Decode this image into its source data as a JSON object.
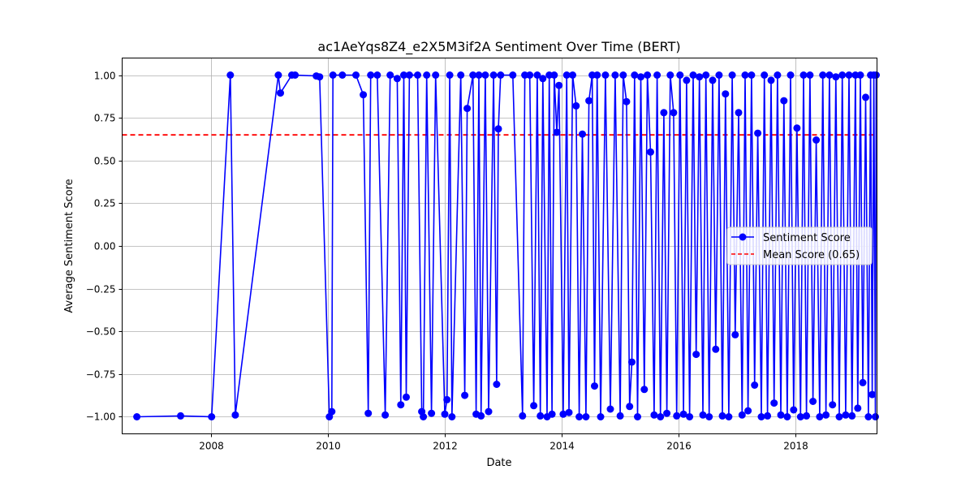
{
  "chart_data": {
    "type": "line",
    "title": "ac1AeYqs8Z4_e2X5M3if2A Sentiment Over Time (BERT)",
    "xlabel": "Date",
    "ylabel": "Average Sentiment Score",
    "xlim": [
      "2006-06-25",
      "2019-05-25"
    ],
    "ylim": [
      -1.1,
      1.1
    ],
    "x_ticks": [
      "2008",
      "2010",
      "2012",
      "2014",
      "2016",
      "2018"
    ],
    "y_ticks": [
      "−1.00",
      "−0.75",
      "−0.50",
      "−0.25",
      "0.00",
      "0.25",
      "0.50",
      "0.75",
      "1.00"
    ],
    "y_tick_values": [
      -1.0,
      -0.75,
      -0.5,
      -0.25,
      0.0,
      0.25,
      0.5,
      0.75,
      1.0
    ],
    "grid": true,
    "legend_position": "center-right",
    "reference_line": {
      "name": "Mean Score (0.65)",
      "value": 0.65,
      "color": "#ff0000",
      "style": "dashed"
    },
    "series": [
      {
        "name": "Sentiment Score",
        "color": "#0000ff",
        "marker": "circle",
        "points": [
          [
            "2006-09-25",
            -1.0
          ],
          [
            "2007-06-25",
            -0.995
          ],
          [
            "2008-01-05",
            -1.0
          ],
          [
            "2008-05-01",
            1.0
          ],
          [
            "2008-06-01",
            -0.99
          ],
          [
            "2009-02-25",
            1.0
          ],
          [
            "2009-03-10",
            0.895
          ],
          [
            "2009-05-20",
            1.0
          ],
          [
            "2009-06-10",
            1.0
          ],
          [
            "2009-10-20",
            0.995
          ],
          [
            "2009-11-10",
            0.99
          ],
          [
            "2010-01-10",
            -1.0
          ],
          [
            "2010-01-25",
            -0.97
          ],
          [
            "2010-02-01",
            1.0
          ],
          [
            "2010-04-01",
            1.0
          ],
          [
            "2010-06-25",
            1.0
          ],
          [
            "2010-08-10",
            0.885
          ],
          [
            "2010-09-10",
            -0.98
          ],
          [
            "2010-09-25",
            1.0
          ],
          [
            "2010-11-05",
            1.0
          ],
          [
            "2010-12-25",
            -0.99
          ],
          [
            "2011-01-25",
            1.0
          ],
          [
            "2011-03-10",
            0.98
          ],
          [
            "2011-04-01",
            -0.93
          ],
          [
            "2011-04-20",
            1.0
          ],
          [
            "2011-05-05",
            -0.885
          ],
          [
            "2011-05-25",
            1.0
          ],
          [
            "2011-07-15",
            1.0
          ],
          [
            "2011-08-10",
            -0.97
          ],
          [
            "2011-08-20",
            -1.0
          ],
          [
            "2011-09-10",
            1.0
          ],
          [
            "2011-10-10",
            -0.98
          ],
          [
            "2011-11-05",
            1.0
          ],
          [
            "2012-01-01",
            -0.985
          ],
          [
            "2012-01-15",
            -0.9
          ],
          [
            "2012-02-01",
            1.0
          ],
          [
            "2012-02-15",
            -1.0
          ],
          [
            "2012-04-10",
            1.0
          ],
          [
            "2012-05-05",
            -0.875
          ],
          [
            "2012-05-20",
            0.805
          ],
          [
            "2012-06-25",
            1.0
          ],
          [
            "2012-07-15",
            -0.985
          ],
          [
            "2012-08-01",
            1.0
          ],
          [
            "2012-08-15",
            -0.995
          ],
          [
            "2012-09-10",
            1.0
          ],
          [
            "2012-10-01",
            -0.97
          ],
          [
            "2012-11-01",
            1.0
          ],
          [
            "2012-11-20",
            -0.81
          ],
          [
            "2012-12-01",
            0.685
          ],
          [
            "2012-12-15",
            1.0
          ],
          [
            "2013-03-01",
            1.0
          ],
          [
            "2013-05-01",
            -0.995
          ],
          [
            "2013-05-15",
            1.0
          ],
          [
            "2013-06-15",
            1.0
          ],
          [
            "2013-07-10",
            -0.935
          ],
          [
            "2013-08-01",
            1.0
          ],
          [
            "2013-08-20",
            -0.995
          ],
          [
            "2013-09-05",
            0.98
          ],
          [
            "2013-10-01",
            -1.0
          ],
          [
            "2013-10-15",
            1.0
          ],
          [
            "2013-11-01",
            -0.985
          ],
          [
            "2013-11-15",
            1.0
          ],
          [
            "2013-12-01",
            0.665
          ],
          [
            "2013-12-15",
            0.94
          ],
          [
            "2014-01-10",
            -0.985
          ],
          [
            "2014-02-01",
            1.0
          ],
          [
            "2014-02-15",
            -0.975
          ],
          [
            "2014-03-10",
            1.0
          ],
          [
            "2014-04-01",
            0.82
          ],
          [
            "2014-04-20",
            -1.0
          ],
          [
            "2014-05-10",
            0.655
          ],
          [
            "2014-06-01",
            -1.0
          ],
          [
            "2014-06-20",
            0.85
          ],
          [
            "2014-07-10",
            1.0
          ],
          [
            "2014-07-25",
            -0.82
          ],
          [
            "2014-08-10",
            1.0
          ],
          [
            "2014-09-01",
            -1.0
          ],
          [
            "2014-10-01",
            1.0
          ],
          [
            "2014-11-01",
            -0.955
          ],
          [
            "2014-12-01",
            1.0
          ],
          [
            "2015-01-01",
            -0.995
          ],
          [
            "2015-01-20",
            1.0
          ],
          [
            "2015-02-10",
            0.845
          ],
          [
            "2015-03-01",
            -0.94
          ],
          [
            "2015-03-15",
            -0.68
          ],
          [
            "2015-04-01",
            1.0
          ],
          [
            "2015-04-20",
            -1.0
          ],
          [
            "2015-05-10",
            0.99
          ],
          [
            "2015-06-01",
            -0.84
          ],
          [
            "2015-06-20",
            1.0
          ],
          [
            "2015-07-10",
            0.55
          ],
          [
            "2015-08-01",
            -0.99
          ],
          [
            "2015-08-20",
            1.0
          ],
          [
            "2015-09-10",
            -1.0
          ],
          [
            "2015-10-01",
            0.78
          ],
          [
            "2015-10-20",
            -0.98
          ],
          [
            "2015-11-10",
            1.0
          ],
          [
            "2015-12-01",
            0.78
          ],
          [
            "2015-12-20",
            -0.995
          ],
          [
            "2016-01-10",
            1.0
          ],
          [
            "2016-02-01",
            -0.985
          ],
          [
            "2016-02-20",
            0.97
          ],
          [
            "2016-03-10",
            -1.0
          ],
          [
            "2016-04-01",
            1.0
          ],
          [
            "2016-04-20",
            -0.635
          ],
          [
            "2016-05-10",
            0.99
          ],
          [
            "2016-06-01",
            -0.99
          ],
          [
            "2016-06-20",
            1.0
          ],
          [
            "2016-07-10",
            -1.0
          ],
          [
            "2016-08-01",
            0.97
          ],
          [
            "2016-08-20",
            -0.605
          ],
          [
            "2016-09-10",
            1.0
          ],
          [
            "2016-10-01",
            -0.995
          ],
          [
            "2016-10-20",
            0.89
          ],
          [
            "2016-11-10",
            -1.0
          ],
          [
            "2016-12-01",
            1.0
          ],
          [
            "2016-12-20",
            -0.52
          ],
          [
            "2017-01-10",
            0.78
          ],
          [
            "2017-02-01",
            -0.99
          ],
          [
            "2017-02-20",
            1.0
          ],
          [
            "2017-03-10",
            -0.965
          ],
          [
            "2017-04-01",
            1.0
          ],
          [
            "2017-04-20",
            -0.815
          ],
          [
            "2017-05-10",
            0.66
          ],
          [
            "2017-06-01",
            -1.0
          ],
          [
            "2017-06-20",
            1.0
          ],
          [
            "2017-07-10",
            -0.995
          ],
          [
            "2017-08-01",
            0.97
          ],
          [
            "2017-08-20",
            -0.92
          ],
          [
            "2017-09-10",
            1.0
          ],
          [
            "2017-10-01",
            -0.99
          ],
          [
            "2017-10-20",
            0.85
          ],
          [
            "2017-11-10",
            -1.0
          ],
          [
            "2017-12-01",
            1.0
          ],
          [
            "2017-12-20",
            -0.96
          ],
          [
            "2018-01-10",
            0.69
          ],
          [
            "2018-02-01",
            -1.0
          ],
          [
            "2018-02-20",
            1.0
          ],
          [
            "2018-03-10",
            -0.995
          ],
          [
            "2018-04-01",
            1.0
          ],
          [
            "2018-04-20",
            -0.91
          ],
          [
            "2018-05-10",
            0.62
          ],
          [
            "2018-06-01",
            -1.0
          ],
          [
            "2018-06-20",
            1.0
          ],
          [
            "2018-07-10",
            -0.99
          ],
          [
            "2018-08-01",
            1.0
          ],
          [
            "2018-08-20",
            -0.93
          ],
          [
            "2018-09-10",
            0.99
          ],
          [
            "2018-10-01",
            -1.0
          ],
          [
            "2018-10-20",
            1.0
          ],
          [
            "2018-11-10",
            -0.99
          ],
          [
            "2018-12-01",
            1.0
          ],
          [
            "2018-12-20",
            -0.995
          ],
          [
            "2019-01-10",
            1.0
          ],
          [
            "2019-01-25",
            -0.95
          ],
          [
            "2019-02-10",
            1.0
          ],
          [
            "2019-02-25",
            -0.8
          ],
          [
            "2019-03-15",
            0.87
          ],
          [
            "2019-04-01",
            -1.0
          ],
          [
            "2019-04-15",
            1.0
          ],
          [
            "2019-04-25",
            -0.87
          ],
          [
            "2019-05-05",
            1.0
          ],
          [
            "2019-05-15",
            -1.0
          ],
          [
            "2019-05-20",
            1.0
          ]
        ]
      }
    ]
  }
}
